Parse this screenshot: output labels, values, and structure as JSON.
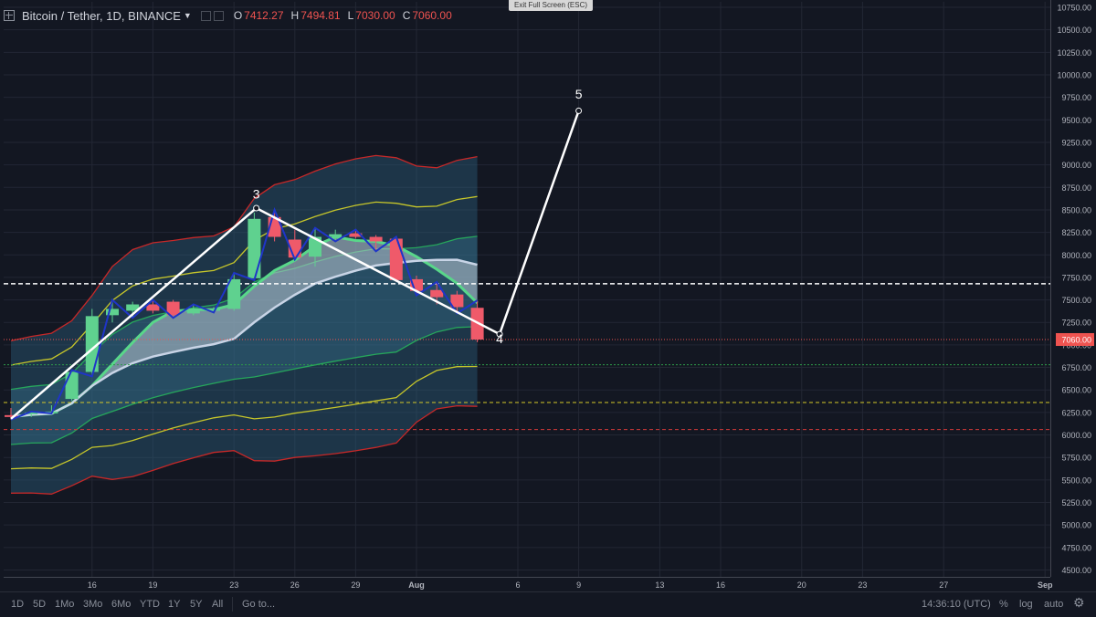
{
  "header": {
    "symbol": "Bitcoin / Tether, 1D, BINANCE",
    "open_label": "O",
    "open": "7412.27",
    "high_label": "H",
    "high": "7494.81",
    "low_label": "L",
    "low": "7030.00",
    "close_label": "C",
    "close": "7060.00",
    "exit_fullscreen": "Exit Full Screen (ESC)"
  },
  "bottom": {
    "ranges": [
      "1D",
      "5D",
      "1Mo",
      "3Mo",
      "6Mo",
      "YTD",
      "1Y",
      "5Y",
      "All"
    ],
    "goto": "Go to...",
    "clock": "14:36:10 (UTC)",
    "percent": "%",
    "log": "log",
    "auto": "auto",
    "settings_icon": "gear-icon"
  },
  "colors": {
    "bull": "#26a69a",
    "bear": "#ef5350",
    "bull_fill": "#5fd18f",
    "bear_fill": "#ef5a6a",
    "price_tag": "#ef5350",
    "band_outer": "#c62828",
    "band_mid": "#c6c62a",
    "band_inner": "#26a65b"
  },
  "chart_data": {
    "type": "candlestick",
    "x_ticks": [
      {
        "label": "16",
        "day": 4
      },
      {
        "label": "19",
        "day": 7
      },
      {
        "label": "23",
        "day": 11
      },
      {
        "label": "26",
        "day": 14
      },
      {
        "label": "29",
        "day": 17
      },
      {
        "label": "Aug",
        "day": 20
      },
      {
        "label": "6",
        "day": 25
      },
      {
        "label": "9",
        "day": 28
      },
      {
        "label": "13",
        "day": 32
      },
      {
        "label": "16",
        "day": 35
      },
      {
        "label": "20",
        "day": 39
      },
      {
        "label": "23",
        "day": 42
      },
      {
        "label": "27",
        "day": 46
      },
      {
        "label": "Sep",
        "day": 51
      }
    ],
    "y_ticks": [
      "10750.00",
      "10500.00",
      "10250.00",
      "10000.00",
      "9750.00",
      "9500.00",
      "9250.00",
      "9000.00",
      "8750.00",
      "8500.00",
      "8250.00",
      "8000.00",
      "7750.00",
      "7500.00",
      "7250.00",
      "7000.00",
      "6750.00",
      "6500.00",
      "6250.00",
      "6000.00",
      "5750.00",
      "5500.00",
      "5250.00",
      "5000.00",
      "4750.00",
      "4500.00"
    ],
    "ylim": [
      4440,
      10820
    ],
    "last_price": "7060.00",
    "last_price_value": 7060,
    "candles": [
      {
        "day": 0,
        "o": 6220,
        "h": 6300,
        "l": 6170,
        "c": 6200
      },
      {
        "day": 1,
        "o": 6230,
        "h": 6260,
        "l": 6200,
        "c": 6250
      },
      {
        "day": 2,
        "o": 6250,
        "h": 6330,
        "l": 6240,
        "c": 6260
      },
      {
        "day": 3,
        "o": 6400,
        "h": 6720,
        "l": 6380,
        "c": 6700
      },
      {
        "day": 4,
        "o": 6700,
        "h": 7400,
        "l": 6650,
        "c": 7320
      },
      {
        "day": 5,
        "o": 7330,
        "h": 7500,
        "l": 7250,
        "c": 7400
      },
      {
        "day": 6,
        "o": 7380,
        "h": 7480,
        "l": 7300,
        "c": 7450
      },
      {
        "day": 7,
        "o": 7450,
        "h": 7500,
        "l": 7350,
        "c": 7380
      },
      {
        "day": 8,
        "o": 7480,
        "h": 7500,
        "l": 7300,
        "c": 7330
      },
      {
        "day": 9,
        "o": 7350,
        "h": 7450,
        "l": 7330,
        "c": 7400
      },
      {
        "day": 10,
        "o": 7380,
        "h": 7420,
        "l": 7360,
        "c": 7400
      },
      {
        "day": 11,
        "o": 7400,
        "h": 7800,
        "l": 7380,
        "c": 7730
      },
      {
        "day": 12,
        "o": 7740,
        "h": 8470,
        "l": 7720,
        "c": 8400
      },
      {
        "day": 13,
        "o": 8420,
        "h": 8500,
        "l": 8150,
        "c": 8200
      },
      {
        "day": 14,
        "o": 8170,
        "h": 8280,
        "l": 7950,
        "c": 7970
      },
      {
        "day": 15,
        "o": 7980,
        "h": 8300,
        "l": 7870,
        "c": 8200
      },
      {
        "day": 16,
        "o": 8200,
        "h": 8280,
        "l": 8150,
        "c": 8230
      },
      {
        "day": 17,
        "o": 8240,
        "h": 8280,
        "l": 8180,
        "c": 8200
      },
      {
        "day": 18,
        "o": 8200,
        "h": 8220,
        "l": 8040,
        "c": 8150
      },
      {
        "day": 19,
        "o": 8180,
        "h": 8200,
        "l": 7700,
        "c": 7720
      },
      {
        "day": 20,
        "o": 7730,
        "h": 7770,
        "l": 7550,
        "c": 7600
      },
      {
        "day": 21,
        "o": 7610,
        "h": 7700,
        "l": 7450,
        "c": 7530
      },
      {
        "day": 22,
        "o": 7560,
        "h": 7600,
        "l": 7350,
        "c": 7420
      },
      {
        "day": 23,
        "o": 7412.27,
        "h": 7494.81,
        "l": 7030,
        "c": 7060
      }
    ],
    "elliott_labels": [
      {
        "label": "3",
        "day": 12.1,
        "price": 8625
      },
      {
        "label": "4",
        "day": 24.1,
        "price": 7020
      },
      {
        "label": "5",
        "day": 28.0,
        "price": 9735
      }
    ],
    "projection": [
      {
        "day": 0,
        "price": 6180
      },
      {
        "day": 12.1,
        "price": 8520
      },
      {
        "day": 24.1,
        "price": 7120
      },
      {
        "day": 28.0,
        "price": 9600
      }
    ],
    "levels": [
      {
        "price": 7680,
        "style": "white-dash"
      },
      {
        "price": 6780,
        "style": "green-dot"
      },
      {
        "price": 6360,
        "style": "yellow-dash"
      },
      {
        "price": 6060,
        "style": "red-dash"
      }
    ]
  }
}
